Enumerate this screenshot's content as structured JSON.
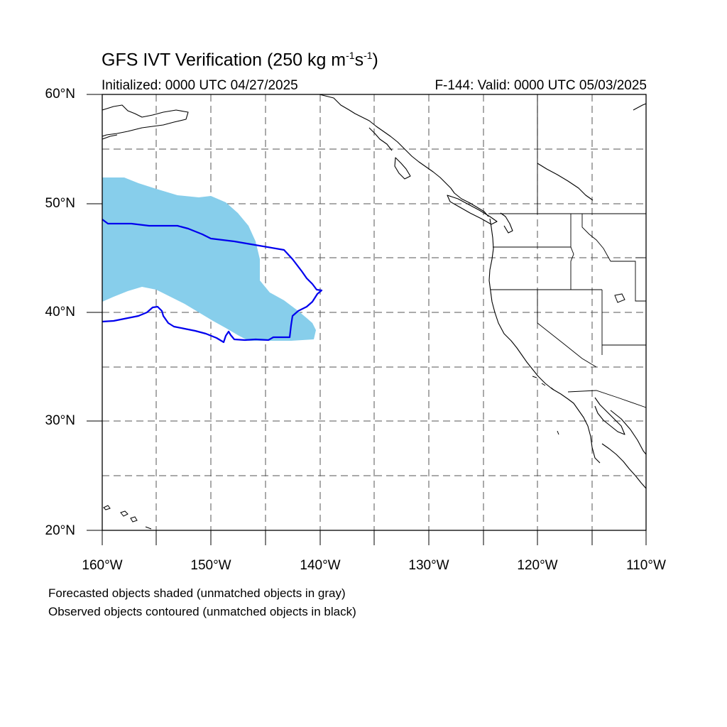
{
  "title": {
    "main": "GFS IVT Verification (250 kg m",
    "sup1": "-1",
    "mid": "s",
    "sup2": "-1",
    "end": ")"
  },
  "initialized": "Initialized: 0000 UTC 04/27/2025",
  "valid": "F-144: Valid: 0000 UTC 05/03/2025",
  "axes": {
    "lat_labels": [
      "60°N",
      "50°N",
      "40°N",
      "30°N",
      "20°N"
    ],
    "lon_labels": [
      "160°W",
      "150°W",
      "140°W",
      "130°W",
      "120°W",
      "110°W"
    ],
    "lat_range": [
      20,
      60
    ],
    "lon_range": [
      -160,
      -110
    ],
    "gridlines": "dashed every 5 degrees"
  },
  "legend": {
    "line1": "Forecasted objects shaded (unmatched objects in gray)",
    "line2": "Observed objects contoured (unmatched objects in black)"
  },
  "colors": {
    "forecast_fill": "#87ceeb",
    "observed_contour": "#0000ee",
    "coastline": "#000000",
    "grid": "#555555"
  }
}
